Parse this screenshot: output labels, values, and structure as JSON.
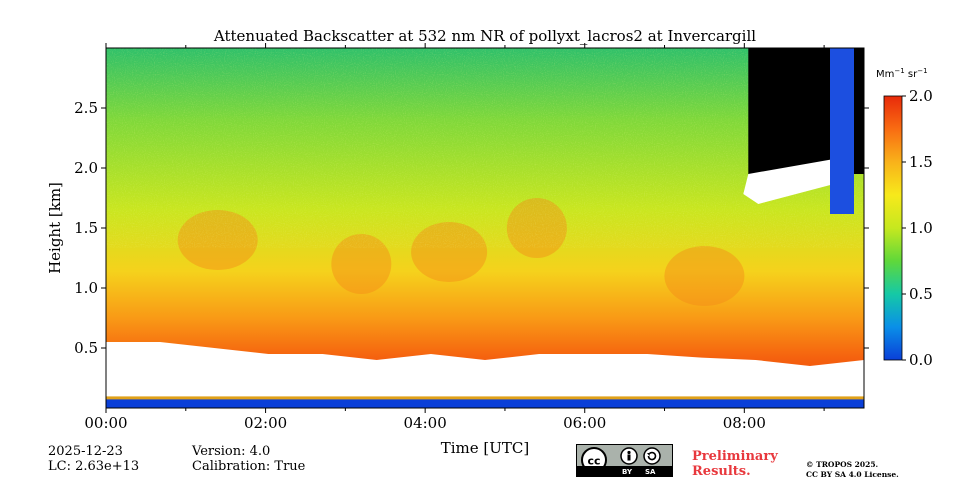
{
  "chart_data": {
    "type": "heatmap",
    "title": "Attenuated Backscatter at 532 nm NR of pollyxt_lacros2 at Invercargill",
    "xlabel": "Time [UTC]",
    "ylabel": "Height [km]",
    "x_range_hours": [
      0,
      9.5
    ],
    "x_ticks": [
      {
        "value": 0,
        "label": "00:00"
      },
      {
        "value": 2,
        "label": "02:00"
      },
      {
        "value": 4,
        "label": "04:00"
      },
      {
        "value": 6,
        "label": "06:00"
      },
      {
        "value": 8,
        "label": "08:00"
      }
    ],
    "x_minor_ticks": [
      1,
      3,
      5,
      7,
      9
    ],
    "ylim_km": [
      0,
      3.0
    ],
    "y_ticks": [
      {
        "value": 0.5,
        "label": "0.5"
      },
      {
        "value": 1.0,
        "label": "1.0"
      },
      {
        "value": 1.5,
        "label": "1.5"
      },
      {
        "value": 2.0,
        "label": "2.0"
      },
      {
        "value": 2.5,
        "label": "2.5"
      }
    ],
    "colorbar": {
      "unit_main": "Mm",
      "unit_exp1": "−1",
      "unit_mid": " sr",
      "unit_exp2": "−1",
      "range": [
        0.0,
        2.0
      ],
      "ticks": [
        {
          "value": 0.0,
          "label": "0.0"
        },
        {
          "value": 0.5,
          "label": "0.5"
        },
        {
          "value": 1.0,
          "label": "1.0"
        },
        {
          "value": 1.5,
          "label": "1.5"
        },
        {
          "value": 2.0,
          "label": "2.0"
        }
      ],
      "colormap": [
        "#0a3fd8",
        "#0a8fe8",
        "#15c9a6",
        "#5fd83a",
        "#c6e81f",
        "#f7e91b",
        "#f9b21a",
        "#f96c12",
        "#e82a0a"
      ]
    },
    "features": {
      "aerosol_layer_top_km": [
        0.55,
        0.55,
        0.5,
        0.45,
        0.45,
        0.4,
        0.45,
        0.4,
        0.45,
        0.45,
        0.45,
        0.42,
        0.4,
        0.35,
        0.4
      ],
      "overlap_band_km": [
        0.0,
        0.08
      ],
      "cloud_onset_hours": 8.05,
      "cloud_base_km": 1.95,
      "no_data_color": "#000000"
    }
  },
  "footer": {
    "date": "2025-12-23",
    "lc": "LC: 2.63e+13",
    "version": "Version: 4.0",
    "calibration": "Calibration: True",
    "cc_by": "BY",
    "cc_sa": "SA",
    "prelim_line1": "Preliminary",
    "prelim_line2": "Results.",
    "copyright_line1": "© TROPOS 2025.",
    "copyright_line2": "CC BY SA 4.0 License."
  }
}
